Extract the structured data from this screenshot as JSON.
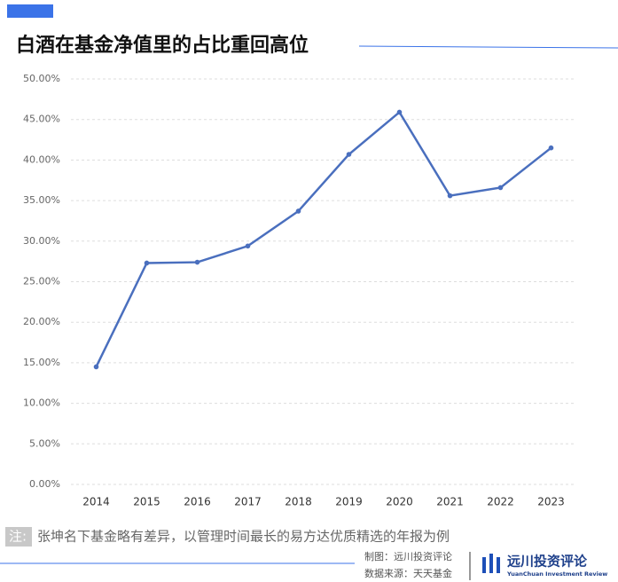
{
  "chart_data": {
    "type": "line",
    "title": "白酒在基金净值里的占比重回高位",
    "categories": [
      "2014",
      "2015",
      "2016",
      "2017",
      "2018",
      "2019",
      "2020",
      "2021",
      "2022",
      "2023"
    ],
    "series": [
      {
        "color": "#4a6fbe",
        "values": [
          14.5,
          27.3,
          27.4,
          29.4,
          33.7,
          40.7,
          45.9,
          35.6,
          36.6,
          41.5
        ]
      }
    ],
    "ylim": [
      0,
      50
    ],
    "yticks": [
      {
        "value": 0,
        "label": "0.00%"
      },
      {
        "value": 5,
        "label": "5.00%"
      },
      {
        "value": 10,
        "label": "10.00%"
      },
      {
        "value": 15,
        "label": "15.00%"
      },
      {
        "value": 20,
        "label": "20.00%"
      },
      {
        "value": 25,
        "label": "25.00%"
      },
      {
        "value": 30,
        "label": "30.00%"
      },
      {
        "value": 35,
        "label": "35.00%"
      },
      {
        "value": 40,
        "label": "40.00%"
      },
      {
        "value": 45,
        "label": "45.00%"
      },
      {
        "value": 50,
        "label": "50.00%"
      }
    ],
    "grid": true
  },
  "footer": {
    "note_label": "注:",
    "note": "张坤名下基金略有差异，以管理时间最长的易方达优质精选的年报为例",
    "made_by": "制图：远川投资评论",
    "source": "数据来源：天天基金",
    "logo": "远川投资评论",
    "logo_sub": "YuanChuan Investment Review"
  }
}
